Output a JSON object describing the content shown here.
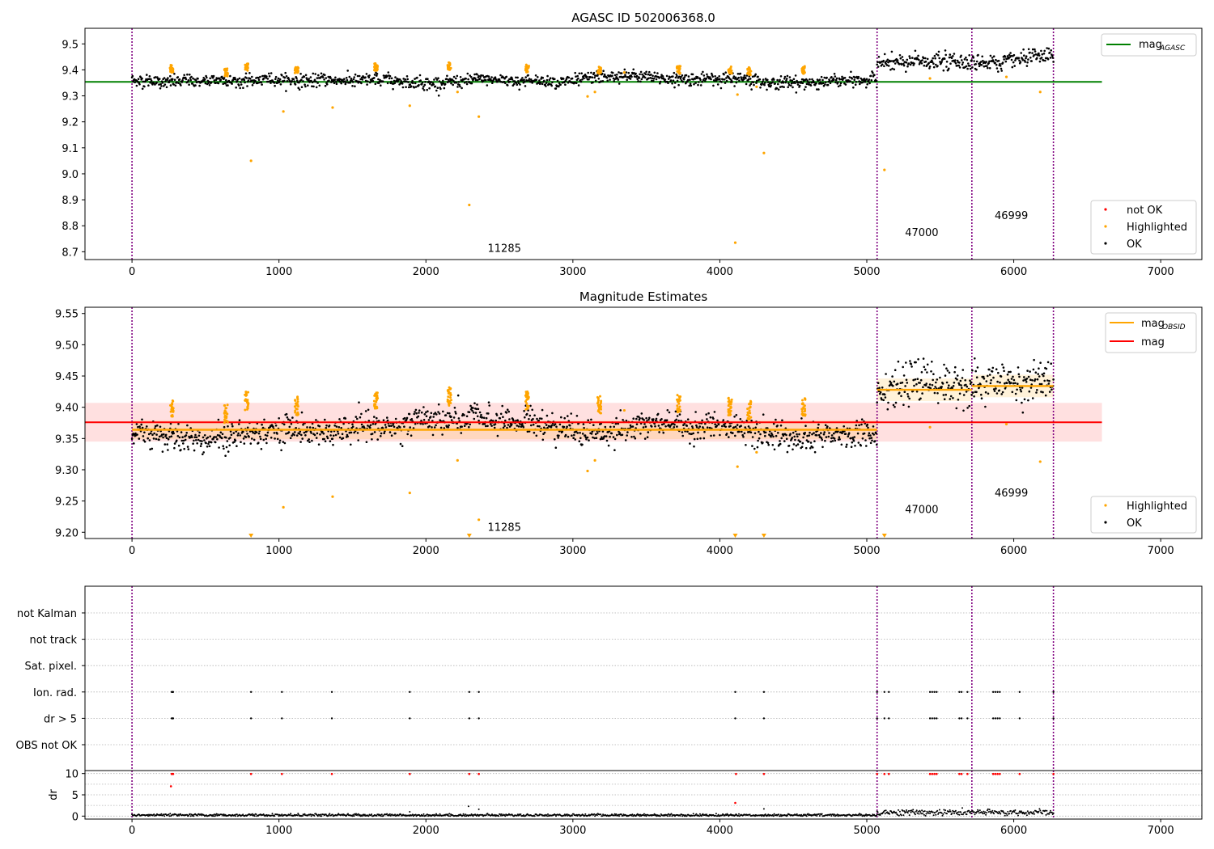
{
  "chart_data": [
    {
      "type": "scatter",
      "title": "AGASC ID 502006368.0",
      "xlim": [
        -320,
        7280
      ],
      "ylim": [
        8.67,
        9.56
      ],
      "xticks": [
        0,
        1000,
        2000,
        3000,
        4000,
        5000,
        6000,
        7000
      ],
      "yticks": [
        8.7,
        8.8,
        8.9,
        9.0,
        9.1,
        9.2,
        9.3,
        9.4,
        9.5
      ],
      "grid": false,
      "legend_upper": {
        "placement": "top-right",
        "entries": [
          {
            "label": "mag",
            "sub": "AGASC",
            "color": "#008000"
          }
        ]
      },
      "legend_lower": {
        "placement": "bottom-right",
        "entries": [
          {
            "label": "not OK",
            "color": "#ff0000"
          },
          {
            "label": "Highlighted",
            "color": "#ffa500"
          },
          {
            "label": "OK",
            "color": "#000000"
          }
        ]
      },
      "mag_agasc": {
        "value": 9.354,
        "x_range": [
          -320,
          6600
        ],
        "color": "#008000"
      },
      "ok_segments": [
        {
          "x": [
            0,
            5070
          ],
          "center": 9.36,
          "spread": 0.012
        },
        {
          "x": [
            5070,
            6270
          ],
          "center": 9.432,
          "spread": 0.016
        }
      ],
      "highlighted_points": [
        {
          "x": 810,
          "y": 9.05
        },
        {
          "x": 1030,
          "y": 9.24
        },
        {
          "x": 1365,
          "y": 9.255
        },
        {
          "x": 1890,
          "y": 9.262
        },
        {
          "x": 2215,
          "y": 9.315
        },
        {
          "x": 2295,
          "y": 8.88
        },
        {
          "x": 2360,
          "y": 9.22
        },
        {
          "x": 3100,
          "y": 9.298
        },
        {
          "x": 3150,
          "y": 9.315
        },
        {
          "x": 4105,
          "y": 8.735
        },
        {
          "x": 4120,
          "y": 9.305
        },
        {
          "x": 4300,
          "y": 9.08
        },
        {
          "x": 5120,
          "y": 9.015
        },
        {
          "x": 5430,
          "y": 9.367
        },
        {
          "x": 5950,
          "y": 9.373
        },
        {
          "x": 6180,
          "y": 9.315
        },
        {
          "x": 4250,
          "y": 9.335
        },
        {
          "x": 3350,
          "y": 9.39
        }
      ],
      "highlight_clusters": [
        {
          "x": 270,
          "top": 9.42
        },
        {
          "x": 640,
          "top": 9.405
        },
        {
          "x": 780,
          "top": 9.425
        },
        {
          "x": 1120,
          "top": 9.415
        },
        {
          "x": 1660,
          "top": 9.425
        },
        {
          "x": 2160,
          "top": 9.43
        },
        {
          "x": 2690,
          "top": 9.42
        },
        {
          "x": 3180,
          "top": 9.415
        },
        {
          "x": 3720,
          "top": 9.415
        },
        {
          "x": 4070,
          "top": 9.415
        },
        {
          "x": 4200,
          "top": 9.41
        },
        {
          "x": 4570,
          "top": 9.415
        }
      ],
      "obsid_lines": [
        0,
        5070,
        5715,
        6270
      ],
      "annotations": [
        {
          "text": "11285",
          "x": 2420,
          "y": 8.7
        },
        {
          "text": "47000",
          "x": 5260,
          "y": 8.76
        },
        {
          "text": "46999",
          "x": 5870,
          "y": 8.825
        }
      ]
    },
    {
      "type": "scatter",
      "title": "Magnitude Estimates",
      "xlim": [
        -320,
        7280
      ],
      "ylim": [
        9.19,
        9.56
      ],
      "xticks": [
        0,
        1000,
        2000,
        3000,
        4000,
        5000,
        6000,
        7000
      ],
      "yticks": [
        9.2,
        9.25,
        9.3,
        9.35,
        9.4,
        9.45,
        9.5,
        9.55
      ],
      "grid": false,
      "legend_upper": {
        "placement": "top-right",
        "entries": [
          {
            "label": "mag",
            "sub": "OBSID",
            "color": "#ffa500"
          },
          {
            "label": "mag",
            "sub": "",
            "color": "#ff0000"
          }
        ]
      },
      "legend_lower": {
        "placement": "bottom-right",
        "entries": [
          {
            "label": "Highlighted",
            "color": "#ffa500"
          },
          {
            "label": "OK",
            "color": "#000000"
          }
        ]
      },
      "mag_line": {
        "value": 9.376,
        "band": [
          9.345,
          9.407
        ],
        "x_range": [
          -320,
          6600
        ],
        "color": "#ff0000"
      },
      "mag_obsid": [
        {
          "x": [
            0,
            5070
          ],
          "value": 9.364,
          "band": [
            9.349,
            9.379
          ]
        },
        {
          "x": [
            5070,
            5715
          ],
          "value": 9.428,
          "band": [
            9.41,
            9.446
          ]
        },
        {
          "x": [
            5715,
            6270
          ],
          "value": 9.434,
          "band": [
            9.416,
            9.452
          ]
        }
      ],
      "ok_segments": [
        {
          "x": [
            0,
            5070
          ],
          "center": 9.362,
          "spread": 0.011
        },
        {
          "x": [
            5070,
            6270
          ],
          "center": 9.432,
          "spread": 0.016
        }
      ],
      "highlighted_points": [
        {
          "x": 1030,
          "y": 9.24
        },
        {
          "x": 1365,
          "y": 9.257
        },
        {
          "x": 1890,
          "y": 9.263
        },
        {
          "x": 2215,
          "y": 9.315
        },
        {
          "x": 2360,
          "y": 9.22
        },
        {
          "x": 3100,
          "y": 9.298
        },
        {
          "x": 3150,
          "y": 9.315
        },
        {
          "x": 4120,
          "y": 9.305
        },
        {
          "x": 4250,
          "y": 9.328
        },
        {
          "x": 5430,
          "y": 9.368
        },
        {
          "x": 5950,
          "y": 9.373
        },
        {
          "x": 6180,
          "y": 9.313
        },
        {
          "x": 3350,
          "y": 9.395
        }
      ],
      "clipped_points": [
        810,
        2295,
        4105,
        4300,
        5120
      ],
      "highlight_clusters": [
        {
          "x": 270,
          "top": 9.415
        },
        {
          "x": 640,
          "top": 9.405
        },
        {
          "x": 780,
          "top": 9.425
        },
        {
          "x": 1120,
          "top": 9.417
        },
        {
          "x": 1660,
          "top": 9.425
        },
        {
          "x": 2160,
          "top": 9.432
        },
        {
          "x": 2690,
          "top": 9.425
        },
        {
          "x": 3180,
          "top": 9.418
        },
        {
          "x": 3720,
          "top": 9.42
        },
        {
          "x": 4070,
          "top": 9.415
        },
        {
          "x": 4200,
          "top": 9.41
        },
        {
          "x": 4570,
          "top": 9.415
        }
      ],
      "obsid_lines": [
        0,
        5070,
        5715,
        6270
      ],
      "annotations": [
        {
          "text": "11285",
          "x": 2420,
          "y": 9.202
        },
        {
          "text": "47000",
          "x": 5260,
          "y": 9.231
        },
        {
          "text": "46999",
          "x": 5870,
          "y": 9.257
        }
      ]
    },
    {
      "type": "scatter",
      "title": "",
      "xlim": [
        -320,
        7280
      ],
      "categories": [
        "OBS not OK",
        "dr > 5",
        "Ion. rad.",
        "Sat. pixel.",
        "not track",
        "not Kalman"
      ],
      "flag_points": {
        "dr > 5": [
          270,
          275,
          280,
          810,
          1020,
          1360,
          1890,
          2295,
          2360,
          4105,
          4300,
          5070,
          5120,
          5150,
          5430,
          5445,
          5460,
          5475,
          5630,
          5645,
          5685,
          5860,
          5875,
          5890,
          5905,
          6040,
          6270
        ],
        "Ion. rad.": [
          270,
          275,
          280,
          810,
          1020,
          1360,
          1890,
          2295,
          2360,
          4105,
          4300,
          5070,
          5120,
          5150,
          5430,
          5445,
          5460,
          5475,
          5630,
          5645,
          5685,
          5860,
          5875,
          5890,
          5905,
          6040,
          6270
        ]
      },
      "obsid_lines": [
        0,
        5070,
        5715,
        6270
      ]
    },
    {
      "type": "scatter",
      "title": "",
      "ylabel": "dr",
      "xlim": [
        -320,
        7280
      ],
      "ylim": [
        -0.7,
        10.7
      ],
      "xticks": [
        0,
        1000,
        2000,
        3000,
        4000,
        5000,
        6000,
        7000
      ],
      "yticks": [
        0,
        5,
        10
      ],
      "dr_segments": [
        {
          "x": [
            0,
            5070
          ],
          "center": 0.22,
          "spread": 0.15
        },
        {
          "x": [
            5070,
            6270
          ],
          "center": 0.85,
          "spread": 0.35
        }
      ],
      "dr_outliers_red": [
        {
          "x": 265,
          "y": 7.0
        },
        {
          "x": 4105,
          "y": 3.1
        },
        {
          "x": 270,
          "y": 9.9
        },
        {
          "x": 275,
          "y": 9.9
        },
        {
          "x": 280,
          "y": 9.9
        },
        {
          "x": 810,
          "y": 9.9
        },
        {
          "x": 1020,
          "y": 9.9
        },
        {
          "x": 1360,
          "y": 9.9
        },
        {
          "x": 1890,
          "y": 9.9
        },
        {
          "x": 2295,
          "y": 9.9
        },
        {
          "x": 2360,
          "y": 9.9
        },
        {
          "x": 4110,
          "y": 9.9
        },
        {
          "x": 4300,
          "y": 9.9
        },
        {
          "x": 5070,
          "y": 9.9
        },
        {
          "x": 5120,
          "y": 9.9
        },
        {
          "x": 5150,
          "y": 9.9
        },
        {
          "x": 5430,
          "y": 9.9
        },
        {
          "x": 5445,
          "y": 9.9
        },
        {
          "x": 5460,
          "y": 9.9
        },
        {
          "x": 5475,
          "y": 9.9
        },
        {
          "x": 5630,
          "y": 9.9
        },
        {
          "x": 5645,
          "y": 9.9
        },
        {
          "x": 5685,
          "y": 9.9
        },
        {
          "x": 5860,
          "y": 9.9
        },
        {
          "x": 5875,
          "y": 9.9
        },
        {
          "x": 5890,
          "y": 9.9
        },
        {
          "x": 5905,
          "y": 9.9
        },
        {
          "x": 6040,
          "y": 9.9
        },
        {
          "x": 6270,
          "y": 9.9
        }
      ],
      "dr_outliers_black": [
        {
          "x": 2290,
          "y": 2.3
        },
        {
          "x": 2360,
          "y": 1.6
        },
        {
          "x": 4300,
          "y": 1.7
        },
        {
          "x": 1890,
          "y": 1.0
        }
      ],
      "obsid_lines": [
        0,
        5070,
        5715,
        6270
      ]
    }
  ]
}
